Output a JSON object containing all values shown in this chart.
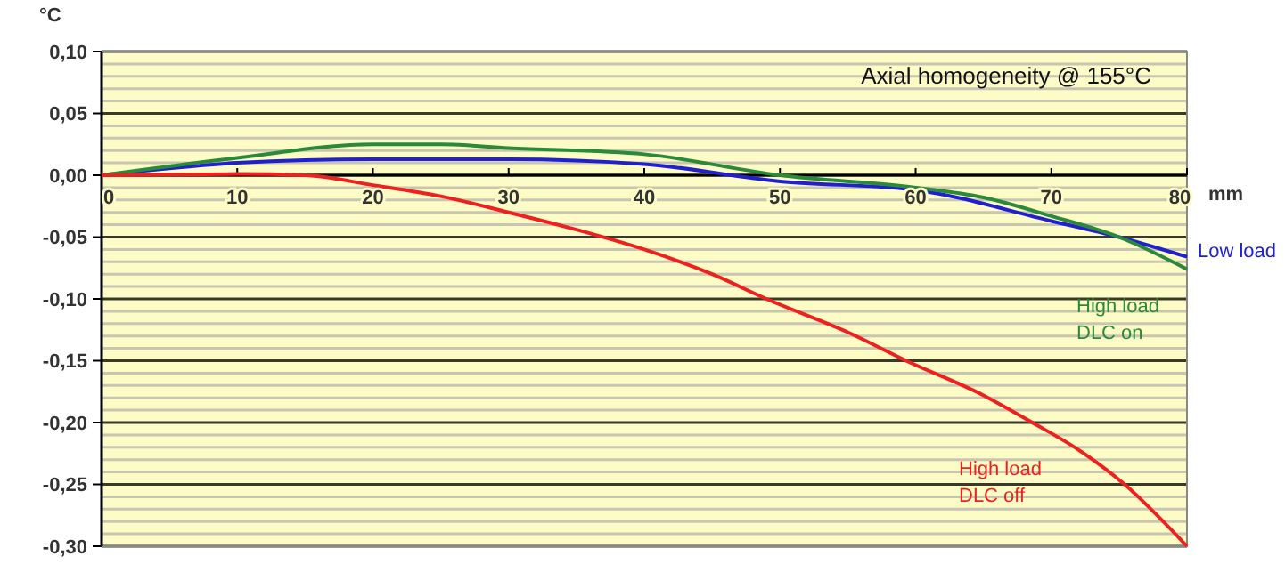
{
  "chart_data": {
    "type": "line",
    "title": "Axial homogeneity @ 155°C",
    "xlabel": "mm",
    "ylabel": "°C",
    "xlim": [
      0,
      80
    ],
    "xticks": [
      0,
      10,
      20,
      30,
      40,
      50,
      60,
      70,
      80
    ],
    "ylim": [
      -0.3,
      0.1
    ],
    "yticks": [
      {
        "value": -0.3,
        "label": "-0,30"
      },
      {
        "value": -0.25,
        "label": "-0,25"
      },
      {
        "value": -0.2,
        "label": "-0,20"
      },
      {
        "value": -0.15,
        "label": "-0,15"
      },
      {
        "value": -0.1,
        "label": "-0,10"
      },
      {
        "value": -0.05,
        "label": "-0,05"
      },
      {
        "value": 0,
        "label": "0,00"
      },
      {
        "value": 0.05,
        "label": "0,05"
      },
      {
        "value": 0.1,
        "label": "0,10"
      }
    ],
    "grid": "y",
    "series": [
      {
        "name": "Low load",
        "color": "#2020d0",
        "x": [
          0,
          10,
          20,
          30,
          40,
          50,
          60,
          70,
          75,
          80
        ],
        "values": [
          0,
          0.01,
          0.013,
          0.013,
          0.009,
          -0.005,
          -0.012,
          -0.037,
          -0.05,
          -0.066
        ]
      },
      {
        "name": "High load\nDLC on",
        "color": "#2a8a3a",
        "x": [
          0,
          10,
          20,
          25,
          30,
          40,
          50,
          60,
          65,
          70,
          75,
          80
        ],
        "values": [
          0,
          0.014,
          0.025,
          0.025,
          0.022,
          0.017,
          0,
          -0.01,
          -0.018,
          -0.033,
          -0.05,
          -0.076
        ]
      },
      {
        "name": "High load\nDLC off",
        "color": "#ee2020",
        "x": [
          0,
          10,
          15,
          20,
          25,
          30,
          35,
          40,
          45,
          49,
          55,
          59.3,
          65,
          68.6,
          72,
          75.4,
          80
        ],
        "values": [
          0,
          0.001,
          0,
          -0.008,
          -0.017,
          -0.03,
          -0.044,
          -0.06,
          -0.08,
          -0.1,
          -0.127,
          -0.15,
          -0.178,
          -0.2,
          -0.222,
          -0.25,
          -0.3
        ]
      }
    ]
  }
}
